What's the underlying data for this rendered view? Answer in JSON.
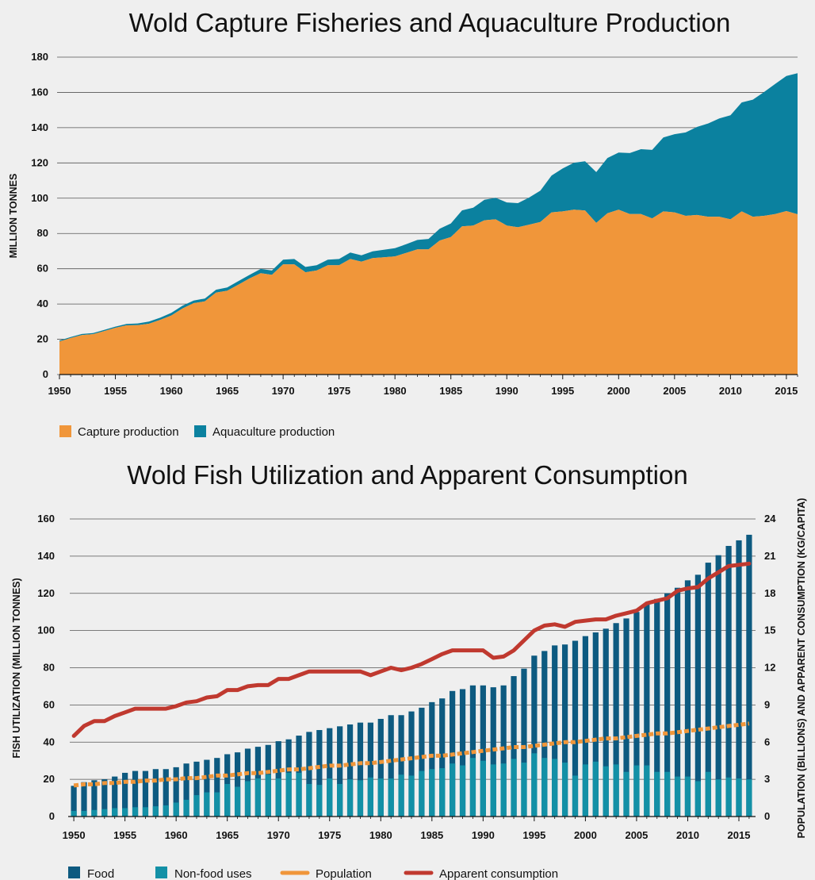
{
  "chart_data": [
    {
      "type": "area",
      "title": "Wold Capture Fisheries and Aquaculture Production",
      "ylabel": "MILLION TONNES",
      "xlabel": "",
      "ylim": [
        0,
        180
      ],
      "yticks": [
        0,
        20,
        40,
        60,
        80,
        100,
        120,
        140,
        160,
        180
      ],
      "xticks": [
        1950,
        1955,
        1960,
        1965,
        1970,
        1975,
        1980,
        1985,
        1990,
        1995,
        2000,
        2005,
        2010,
        2015
      ],
      "grid": "horizontal",
      "legend_position": "bottom-left",
      "stacked": true,
      "x": [
        1950,
        1951,
        1952,
        1953,
        1954,
        1955,
        1956,
        1957,
        1958,
        1959,
        1960,
        1961,
        1962,
        1963,
        1964,
        1965,
        1966,
        1967,
        1968,
        1969,
        1970,
        1971,
        1972,
        1973,
        1974,
        1975,
        1976,
        1977,
        1978,
        1979,
        1980,
        1981,
        1982,
        1983,
        1984,
        1985,
        1986,
        1987,
        1988,
        1989,
        1990,
        1991,
        1992,
        1993,
        1994,
        1995,
        1996,
        1997,
        1998,
        1999,
        2000,
        2001,
        2002,
        2003,
        2004,
        2005,
        2006,
        2007,
        2008,
        2009,
        2010,
        2011,
        2012,
        2013,
        2014,
        2015,
        2016
      ],
      "series": [
        {
          "name": "Capture production",
          "color": "#f0963a",
          "values": [
            18.7,
            20.7,
            22.4,
            22.9,
            24.6,
            26.5,
            27.9,
            28.0,
            28.8,
            31.0,
            33.5,
            37.5,
            40.5,
            41.5,
            46.5,
            47.5,
            51.0,
            54.5,
            57.5,
            56.5,
            62.5,
            62.5,
            58.0,
            59.0,
            62.0,
            62.0,
            65.5,
            64.0,
            66.0,
            66.5,
            67.0,
            69.0,
            71.0,
            71.0,
            76.0,
            78.0,
            84.0,
            84.5,
            87.5,
            88.0,
            84.5,
            83.5,
            85.0,
            86.5,
            92.0,
            92.5,
            93.5,
            93.0,
            86.0,
            91.5,
            93.5,
            91.0,
            91.0,
            88.5,
            92.5,
            92.0,
            90.0,
            90.5,
            89.5,
            89.5,
            88.0,
            92.5,
            89.5,
            90.0,
            91.0,
            92.7,
            90.9
          ]
        },
        {
          "name": "Aquaculture production",
          "color": "#0b819f",
          "values": [
            0.6,
            0.6,
            0.6,
            0.6,
            0.7,
            0.7,
            0.8,
            1.0,
            1.2,
            1.2,
            1.5,
            1.5,
            1.5,
            1.6,
            1.6,
            1.9,
            2.0,
            2.0,
            2.4,
            2.5,
            2.6,
            3.0,
            3.0,
            3.0,
            3.1,
            3.5,
            3.7,
            3.6,
            3.9,
            4.3,
            4.7,
            4.9,
            5.3,
            5.9,
            6.7,
            7.7,
            9.1,
            10.1,
            11.6,
            12.2,
            13.1,
            13.7,
            15.4,
            17.8,
            20.8,
            24.4,
            26.6,
            27.9,
            28.8,
            31.3,
            32.4,
            34.6,
            36.8,
            38.9,
            41.9,
            44.3,
            47.3,
            49.9,
            52.9,
            55.7,
            59.0,
            61.8,
            66.4,
            70.2,
            73.8,
            76.6,
            80.0
          ]
        }
      ]
    },
    {
      "type": "bar",
      "title": "Wold Fish Utilization and Apparent Consumption",
      "ylabel": "FISH UTILIZATION (MILLION TONNES)",
      "y2label": "POPULATION (BILLIONS) AND APPARENT CONSUMPTION (KG/CAPITA)",
      "xlabel": "",
      "ylim": [
        0,
        160
      ],
      "y2lim": [
        0,
        24
      ],
      "yticks": [
        0,
        20,
        40,
        60,
        80,
        100,
        120,
        140,
        160
      ],
      "y2ticks": [
        0,
        3,
        6,
        9,
        12,
        15,
        18,
        21,
        24
      ],
      "xticks": [
        1950,
        1955,
        1960,
        1965,
        1970,
        1975,
        1980,
        1985,
        1990,
        1995,
        2000,
        2005,
        2010,
        2015
      ],
      "grid": "horizontal",
      "legend_position": "bottom",
      "x": [
        1950,
        1951,
        1952,
        1953,
        1954,
        1955,
        1956,
        1957,
        1958,
        1959,
        1960,
        1961,
        1962,
        1963,
        1964,
        1965,
        1966,
        1967,
        1968,
        1969,
        1970,
        1971,
        1972,
        1973,
        1974,
        1975,
        1976,
        1977,
        1978,
        1979,
        1980,
        1981,
        1982,
        1983,
        1984,
        1985,
        1986,
        1987,
        1988,
        1989,
        1990,
        1991,
        1992,
        1993,
        1994,
        1995,
        1996,
        1997,
        1998,
        1999,
        2000,
        2001,
        2002,
        2003,
        2004,
        2005,
        2006,
        2007,
        2008,
        2009,
        2010,
        2011,
        2012,
        2013,
        2014,
        2015,
        2016
      ],
      "series": [
        {
          "name": "Food",
          "type": "bar",
          "axis": "left",
          "color": "#0d5a80",
          "values": [
            16.5,
            18.5,
            19.5,
            20.0,
            21.5,
            23.5,
            24.5,
            24.5,
            25.5,
            25.5,
            26.5,
            28.5,
            29.5,
            30.5,
            31.5,
            33.5,
            34.5,
            36.5,
            37.5,
            38.5,
            40.5,
            41.5,
            43.5,
            45.5,
            46.5,
            47.5,
            48.5,
            49.5,
            50.5,
            50.5,
            52.5,
            54.5,
            54.5,
            56.5,
            58.5,
            61.5,
            63.5,
            67.5,
            68.5,
            70.5,
            70.5,
            69.5,
            70.5,
            75.5,
            79.5,
            86.5,
            89.0,
            92.0,
            92.5,
            94.5,
            97.0,
            99.0,
            101.0,
            104.0,
            106.5,
            110.0,
            114.0,
            117.0,
            120.0,
            123.0,
            127.0,
            130.0,
            136.5,
            140.5,
            145.5,
            148.5,
            151.5
          ]
        },
        {
          "name": "Non-food uses",
          "type": "bar",
          "axis": "left",
          "color": "#1390a6",
          "values": [
            3.0,
            3.0,
            3.5,
            4.0,
            4.5,
            4.5,
            5.0,
            5.0,
            5.5,
            6.0,
            7.5,
            9.0,
            11.5,
            13.0,
            13.0,
            17.5,
            16.0,
            19.0,
            20.5,
            22.5,
            20.5,
            23.5,
            23.5,
            17.5,
            17.0,
            20.5,
            17.5,
            20.0,
            19.5,
            21.0,
            20.5,
            20.5,
            22.5,
            22.0,
            24.5,
            25.5,
            26.0,
            28.5,
            27.5,
            31.5,
            30.0,
            28.0,
            28.5,
            31.0,
            29.0,
            34.0,
            31.5,
            31.0,
            29.0,
            22.0,
            28.0,
            29.5,
            27.0,
            28.0,
            24.0,
            27.5,
            27.5,
            24.0,
            24.0,
            21.5,
            21.5,
            19.0,
            24.0,
            20.0,
            21.0,
            20.5,
            20.0
          ]
        },
        {
          "name": "Population",
          "type": "line",
          "axis": "right",
          "color": "#f0963a",
          "values": [
            2.5,
            2.6,
            2.6,
            2.7,
            2.7,
            2.8,
            2.8,
            2.9,
            2.9,
            3.0,
            3.0,
            3.1,
            3.1,
            3.2,
            3.3,
            3.3,
            3.4,
            3.5,
            3.5,
            3.6,
            3.7,
            3.8,
            3.8,
            3.9,
            4.0,
            4.1,
            4.1,
            4.2,
            4.3,
            4.3,
            4.4,
            4.5,
            4.6,
            4.7,
            4.8,
            4.9,
            4.9,
            5.0,
            5.1,
            5.2,
            5.3,
            5.4,
            5.5,
            5.6,
            5.6,
            5.7,
            5.8,
            5.9,
            6.0,
            6.0,
            6.1,
            6.2,
            6.3,
            6.3,
            6.4,
            6.5,
            6.6,
            6.7,
            6.7,
            6.8,
            6.9,
            7.0,
            7.1,
            7.2,
            7.3,
            7.4,
            7.5
          ]
        },
        {
          "name": "Apparent consumption",
          "type": "line",
          "axis": "right",
          "color": "#c0392f",
          "values": [
            6.5,
            7.3,
            7.7,
            7.7,
            8.1,
            8.4,
            8.7,
            8.7,
            8.7,
            8.7,
            8.9,
            9.2,
            9.3,
            9.6,
            9.7,
            10.2,
            10.2,
            10.5,
            10.6,
            10.6,
            11.1,
            11.1,
            11.4,
            11.7,
            11.7,
            11.7,
            11.7,
            11.7,
            11.7,
            11.4,
            11.7,
            12.0,
            11.8,
            12.0,
            12.3,
            12.7,
            13.1,
            13.4,
            13.4,
            13.4,
            13.4,
            12.8,
            12.9,
            13.4,
            14.2,
            15.0,
            15.4,
            15.5,
            15.3,
            15.7,
            15.8,
            15.9,
            15.9,
            16.2,
            16.4,
            16.6,
            17.2,
            17.4,
            17.6,
            18.2,
            18.4,
            18.5,
            19.2,
            19.7,
            20.2,
            20.3,
            20.4
          ]
        }
      ]
    }
  ]
}
